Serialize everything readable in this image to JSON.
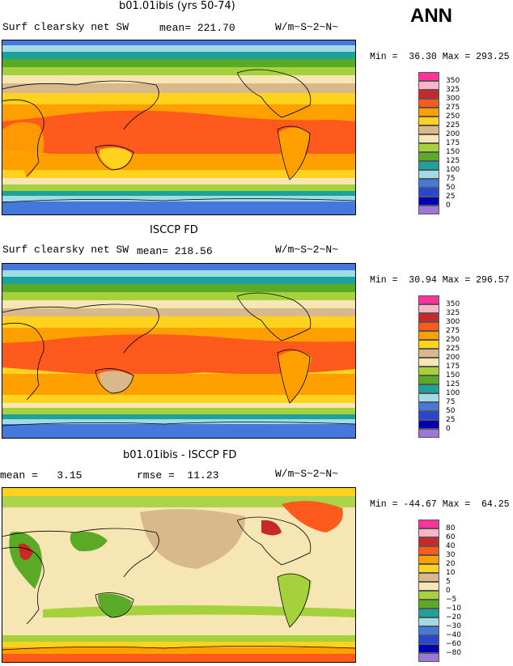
{
  "header": {
    "season": "ANN"
  },
  "panels": [
    {
      "title": "b01.01ibis (yrs 50-74)",
      "left_label": "Surf clearsky net SW",
      "stat1": "mean= 221.70",
      "stat2": "",
      "units": "W/m~S~2~N~",
      "minmax": "Min =  36.30 Max = 293.25",
      "scale": "abs"
    },
    {
      "title": "ISCCP FD",
      "left_label": "Surf clearsky net SW",
      "stat1": "mean= 218.56",
      "stat2": "",
      "units": "W/m~S~2~N~",
      "minmax": "Min =  30.94 Max = 296.57",
      "scale": "abs"
    },
    {
      "title": "b01.01ibis - ISCCP FD",
      "left_label": "mean =   3.15",
      "stat1": "rmse =  11.23",
      "stat2": "",
      "units": "W/m~S~2~N~",
      "minmax": "Min = -44.67 Max =  64.25",
      "scale": "diff"
    }
  ],
  "legend_abs": {
    "levels": [
      "350",
      "325",
      "300",
      "275",
      "250",
      "225",
      "200",
      "175",
      "150",
      "125",
      "100",
      "75",
      "50",
      "25",
      "0"
    ],
    "colors": [
      "#ff3399",
      "#ffb3c6",
      "#c82828",
      "#ff5a1e",
      "#ffa000",
      "#ffd21e",
      "#d7b98c",
      "#f5e6b4",
      "#a5d23c",
      "#5aaa28",
      "#1ea09b",
      "#a0dce6",
      "#4678dc",
      "#2846d2",
      "#0000b4",
      "#9b78d7"
    ]
  },
  "legend_diff": {
    "levels": [
      "80",
      "60",
      "40",
      "30",
      "20",
      "10",
      "5",
      "0",
      "−5",
      "−10",
      "−20",
      "−30",
      "−40",
      "−60",
      "−80"
    ],
    "colors": [
      "#ff3399",
      "#ffb3c6",
      "#c82828",
      "#ff5a1e",
      "#ffa000",
      "#ffd21e",
      "#d7b98c",
      "#f5e6b4",
      "#a5d23c",
      "#5aaa28",
      "#1ea09b",
      "#a0dce6",
      "#4678dc",
      "#2846d2",
      "#0000b4",
      "#9b78d7"
    ]
  },
  "chart_data": [
    {
      "type": "heatmap",
      "title": "b01.01ibis (yrs 50-74)",
      "variable": "Surf clearsky net SW",
      "units": "W/m~S~2~N~",
      "mean": 221.7,
      "min": 36.3,
      "max": 293.25,
      "contour_levels": [
        0,
        25,
        50,
        75,
        100,
        125,
        150,
        175,
        200,
        225,
        250,
        275,
        300,
        325,
        350
      ]
    },
    {
      "type": "heatmap",
      "title": "ISCCP FD",
      "variable": "Surf clearsky net SW",
      "units": "W/m~S~2~N~",
      "mean": 218.56,
      "min": 30.94,
      "max": 296.57,
      "contour_levels": [
        0,
        25,
        50,
        75,
        100,
        125,
        150,
        175,
        200,
        225,
        250,
        275,
        300,
        325,
        350
      ]
    },
    {
      "type": "heatmap",
      "title": "b01.01ibis - ISCCP FD",
      "units": "W/m~S~2~N~",
      "mean": 3.15,
      "rmse": 11.23,
      "min": -44.67,
      "max": 64.25,
      "contour_levels": [
        -80,
        -60,
        -40,
        -30,
        -20,
        -10,
        -5,
        0,
        5,
        10,
        20,
        30,
        40,
        60,
        80
      ]
    }
  ]
}
